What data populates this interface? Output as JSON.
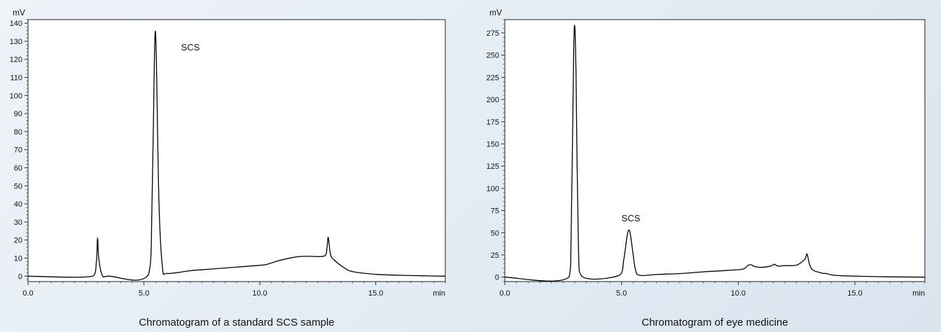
{
  "chart_data": [
    {
      "type": "line",
      "title": "",
      "caption": "Chromatogram of a standard SCS sample",
      "xlabel": "min",
      "ylabel": "mV",
      "xlim": [
        0,
        18
      ],
      "ylim": [
        -3,
        142
      ],
      "xticks": [
        0,
        5,
        10,
        15
      ],
      "xtick_labels": [
        "0.0",
        "5.0",
        "10.0",
        "15.0"
      ],
      "yticks": [
        0,
        10,
        20,
        30,
        40,
        50,
        60,
        70,
        80,
        90,
        100,
        110,
        120,
        130,
        140
      ],
      "ytick_labels": [
        "0",
        "10",
        "20",
        "30",
        "40",
        "50",
        "60",
        "70",
        "80",
        "90",
        "100",
        "110",
        "120",
        "130",
        "140"
      ],
      "grid": false,
      "annotations": [
        {
          "text": "SCS",
          "x": 6.6,
          "y": 125
        }
      ],
      "series": [
        {
          "x": [
            0,
            2.8,
            2.95,
            3.0,
            3.05,
            3.2,
            3.5,
            5.2,
            5.35,
            5.45,
            5.5,
            5.55,
            5.65,
            5.8,
            6.0,
            7.0,
            8.0,
            9.0,
            10.0,
            10.3,
            10.8,
            11.5,
            12.0,
            12.8,
            12.9,
            12.95,
            13.05,
            13.2,
            13.6,
            14.0,
            15.0,
            16.0,
            17.0,
            18.0
          ],
          "y": [
            0,
            0,
            8,
            21,
            10,
            0.5,
            0,
            1,
            40,
            120,
            135,
            110,
            40,
            5,
            1.5,
            3,
            4,
            5,
            6,
            6.5,
            8.5,
            10.5,
            11,
            11.2,
            16,
            21.5,
            12,
            9,
            5,
            2.5,
            1,
            0.5,
            0.2,
            0
          ]
        }
      ]
    },
    {
      "type": "line",
      "title": "",
      "caption": "Chromatogram of eye medicine",
      "xlabel": "min",
      "ylabel": "mV",
      "xlim": [
        0,
        18
      ],
      "ylim": [
        -5,
        290
      ],
      "xticks": [
        0,
        5,
        10,
        15
      ],
      "xtick_labels": [
        "0.0",
        "5.0",
        "10.0",
        "15.0"
      ],
      "yticks": [
        0,
        25,
        50,
        75,
        100,
        125,
        150,
        175,
        200,
        225,
        250,
        275
      ],
      "ytick_labels": [
        "0",
        "25",
        "50",
        "75",
        "100",
        "125",
        "150",
        "175",
        "200",
        "225",
        "250",
        "275"
      ],
      "grid": false,
      "annotations": [
        {
          "text": "SCS",
          "x": 5.0,
          "y": 63
        }
      ],
      "series": [
        {
          "x": [
            0,
            2.75,
            2.85,
            2.95,
            3.0,
            3.05,
            3.15,
            3.3,
            4.9,
            5.1,
            5.25,
            5.35,
            5.45,
            5.6,
            5.8,
            6.5,
            7.5,
            8.5,
            9.5,
            10.2,
            10.4,
            10.55,
            10.7,
            11.0,
            11.4,
            11.55,
            11.7,
            12.0,
            12.5,
            12.85,
            12.95,
            13.05,
            13.2,
            13.6,
            13.8,
            14.0,
            14.5,
            15.5,
            16.5,
            18.0
          ],
          "y": [
            0,
            0,
            60,
            250,
            282,
            230,
            40,
            1,
            2,
            20,
            48,
            52,
            35,
            8,
            2,
            3,
            4,
            6,
            7.5,
            9,
            13,
            14,
            12,
            11,
            12.5,
            14.5,
            12.5,
            13,
            13.5,
            20,
            26,
            15,
            8,
            4.5,
            4,
            2.5,
            1.5,
            0.8,
            0.3,
            0
          ]
        }
      ]
    }
  ]
}
